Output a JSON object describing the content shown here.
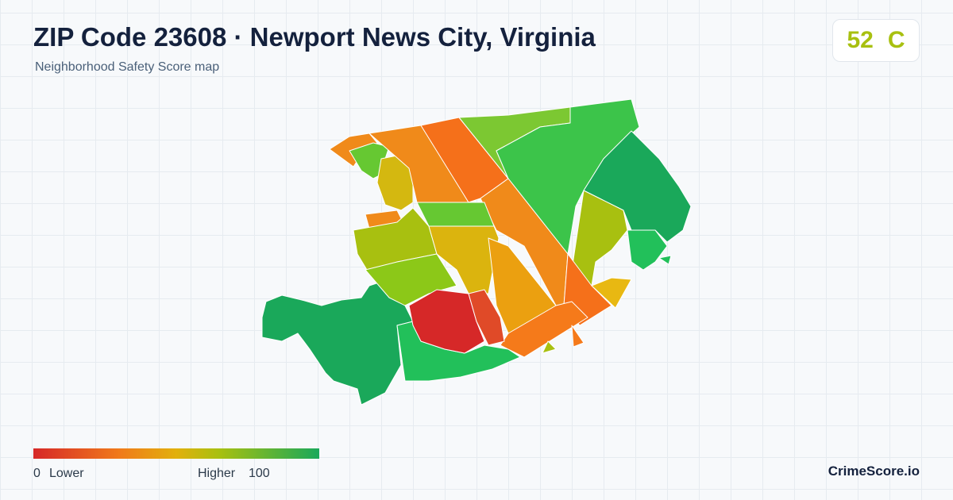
{
  "header": {
    "title": "ZIP Code 23608 · Newport News City, Virginia",
    "subtitle": "Neighborhood Safety Score map"
  },
  "score": {
    "value": 52,
    "grade": "C"
  },
  "legend": {
    "min": 0,
    "min_label": "Lower",
    "max_label": "Higher",
    "max": 100
  },
  "brand": "CrimeScore.io"
}
